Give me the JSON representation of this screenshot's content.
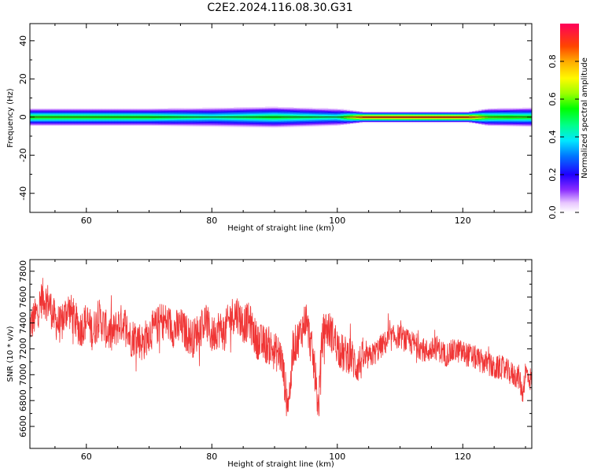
{
  "title": "C2E2.2024.116.08.30.G31",
  "chart_data": [
    {
      "type": "heatmap",
      "xlabel": "Height of straight line (km)",
      "ylabel": "Frequency (Hz)",
      "xlim": [
        51,
        131
      ],
      "ylim": [
        -50,
        49
      ],
      "xticks": [
        "60",
        "80",
        "100",
        "120"
      ],
      "yticks": [
        "-40",
        "-20",
        "0",
        "20",
        "40"
      ],
      "colorbar": {
        "label": "Normalized spectral amplitude",
        "range": [
          0,
          1
        ],
        "ticks": [
          "0.0",
          "0.2",
          "0.4",
          "0.6",
          "0.8"
        ],
        "colormap": "gist_rainbow"
      },
      "band": [
        {
          "x": 51,
          "halfwidth_hz": 3.5,
          "peak": 0.62
        },
        {
          "x": 70,
          "halfwidth_hz": 3.5,
          "peak": 0.6
        },
        {
          "x": 80,
          "halfwidth_hz": 4,
          "peak": 0.5
        },
        {
          "x": 90,
          "halfwidth_hz": 4.5,
          "peak": 0.58
        },
        {
          "x": 100,
          "halfwidth_hz": 3.5,
          "peak": 0.5
        },
        {
          "x": 104,
          "halfwidth_hz": 1.5,
          "peak": 0.98
        },
        {
          "x": 110,
          "halfwidth_hz": 1.5,
          "peak": 1.0
        },
        {
          "x": 121,
          "halfwidth_hz": 1.5,
          "peak": 0.98
        },
        {
          "x": 124,
          "halfwidth_hz": 3.5,
          "peak": 0.65
        },
        {
          "x": 131,
          "halfwidth_hz": 4,
          "peak": 0.6
        }
      ]
    },
    {
      "type": "line",
      "xlabel": "Height of straight line (km)",
      "ylabel": "SNR (10 * v/v)",
      "xlim": [
        51,
        131
      ],
      "ylim": [
        6430,
        7890
      ],
      "xticks": [
        "60",
        "80",
        "100",
        "120"
      ],
      "yticks": [
        "6600",
        "6800",
        "7000",
        "7200",
        "7400",
        "7600",
        "7800"
      ],
      "series_color": "#f03535",
      "x": [
        51,
        52,
        53,
        54,
        55,
        56,
        57,
        58,
        59,
        60,
        61,
        62,
        63,
        64,
        65,
        66,
        67,
        68,
        69,
        70,
        71,
        72,
        73,
        74,
        75,
        76,
        77,
        78,
        79,
        80,
        81,
        82,
        83,
        84,
        85,
        86,
        87,
        88,
        89,
        90,
        91,
        91.5,
        92,
        92.5,
        93,
        94,
        95,
        96,
        96.5,
        97,
        97.5,
        98,
        99,
        100,
        101,
        102,
        103,
        104,
        105,
        106,
        107,
        108,
        109,
        110,
        111,
        112,
        113,
        114,
        115,
        116,
        117,
        118,
        119,
        120,
        121,
        122,
        123,
        124,
        125,
        126,
        127,
        128,
        129,
        129.5,
        130,
        131
      ],
      "y": [
        7380,
        7460,
        7600,
        7560,
        7420,
        7380,
        7520,
        7440,
        7350,
        7420,
        7330,
        7440,
        7360,
        7300,
        7380,
        7410,
        7280,
        7300,
        7240,
        7330,
        7360,
        7420,
        7400,
        7350,
        7370,
        7320,
        7280,
        7350,
        7420,
        7300,
        7360,
        7330,
        7450,
        7480,
        7390,
        7410,
        7280,
        7240,
        7230,
        7180,
        7150,
        6980,
        6780,
        6900,
        7210,
        7300,
        7440,
        7170,
        6990,
        6720,
        7240,
        7370,
        7330,
        7230,
        7150,
        7160,
        7070,
        7110,
        7130,
        7170,
        7220,
        7260,
        7290,
        7300,
        7260,
        7240,
        7220,
        7180,
        7190,
        7210,
        7150,
        7170,
        7190,
        7170,
        7150,
        7130,
        7100,
        7090,
        7040,
        7060,
        7030,
        7000,
        6980,
        6850,
        7020,
        6950
      ]
    }
  ]
}
